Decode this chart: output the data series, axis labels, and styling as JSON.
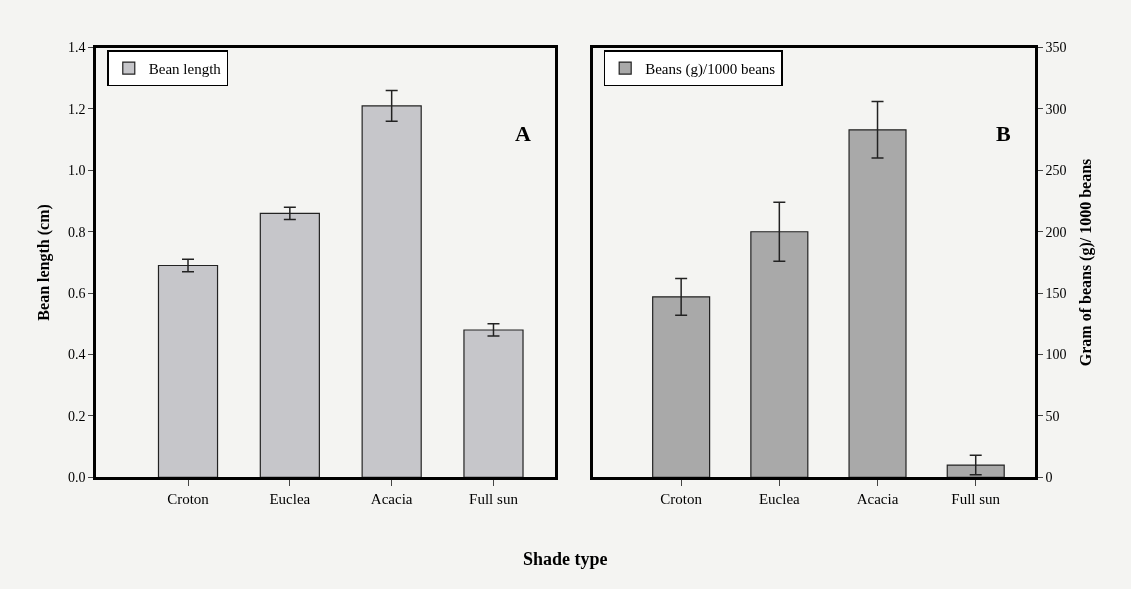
{
  "chart_data": [
    {
      "type": "bar",
      "xlabel": "Shade type",
      "ylabel": "Bean length (cm)",
      "categories": [
        "Croton",
        "Euclea",
        "Acacia",
        "Full sun"
      ],
      "series": [
        {
          "name": "Bean length",
          "color": "#c6c6ca",
          "values": [
            0.69,
            0.86,
            1.21,
            0.48
          ],
          "errors": [
            0.02,
            0.02,
            0.05,
            0.02
          ]
        }
      ],
      "ylim": [
        0,
        1.4
      ],
      "yticks": [
        {
          "value": 0,
          "label": "0.0"
        },
        0.2,
        0.4,
        0.6,
        0.8,
        {
          "value": 1,
          "label": "1.0"
        },
        1.2,
        1.4
      ],
      "annotations": [
        "A"
      ],
      "legend": "top left",
      "grid": false
    },
    {
      "type": "bar",
      "ylabel": "Gram of beans (g)/ 1000 beans",
      "categories": [
        "Croton",
        "Euclea",
        "Acacia",
        "Full sun"
      ],
      "series": [
        {
          "name": "Beans (g)/1000 beans",
          "color": "#a9a9a9",
          "values": [
            147,
            200,
            283,
            10
          ],
          "errors": [
            15,
            24,
            23,
            8
          ]
        }
      ],
      "ylim": [
        0,
        350
      ],
      "yticks": [
        0,
        50,
        100,
        150,
        200,
        250,
        300,
        350
      ],
      "annotations": [
        "B"
      ],
      "legend": "top left",
      "grid": false
    }
  ]
}
